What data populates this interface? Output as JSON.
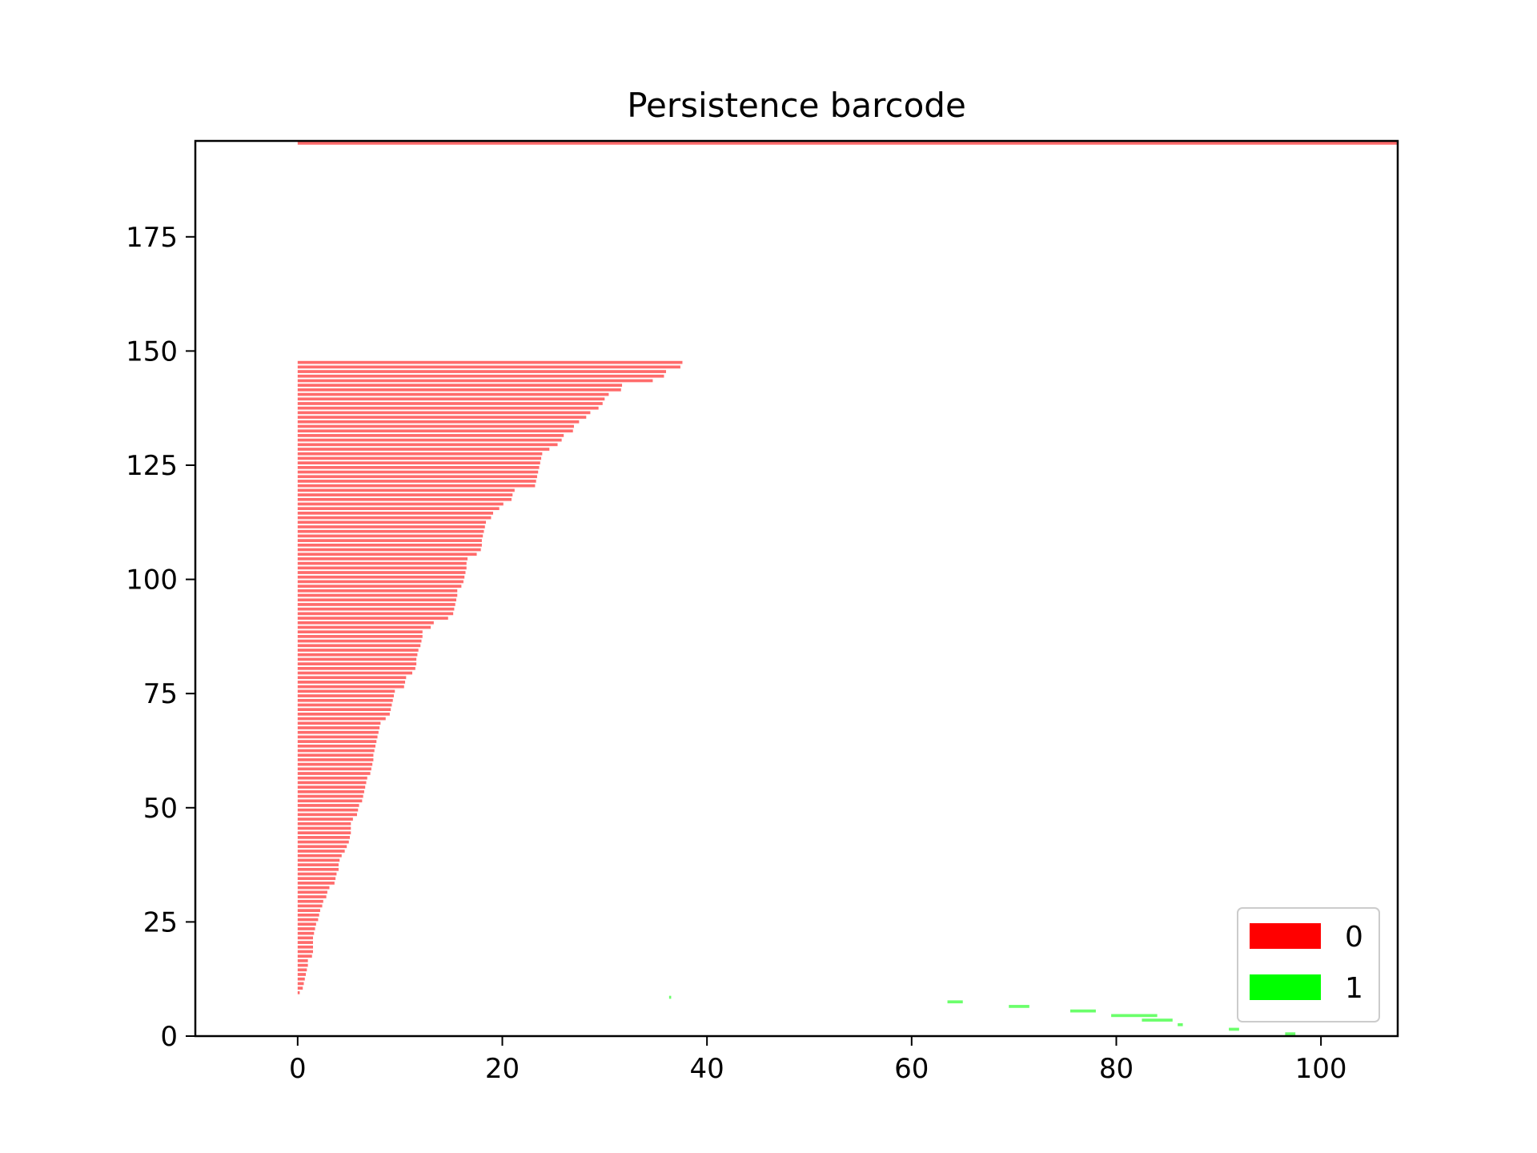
{
  "chart_data": {
    "type": "barcode",
    "title": "Persistence barcode",
    "xlabel": "",
    "ylabel": "",
    "xlim": [
      -10,
      107.5
    ],
    "ylim": [
      0,
      196
    ],
    "x_ticks": [
      0,
      20,
      40,
      60,
      80,
      100
    ],
    "y_ticks": [
      0,
      25,
      50,
      75,
      100,
      125,
      150,
      175
    ],
    "grid": false,
    "legend_position": "lower-right",
    "series": [
      {
        "name": "0",
        "legend_color": "#ff0000",
        "bar_color": "#ff6b6b",
        "births": 0,
        "bar_start_index": 9,
        "deaths": [
          0.2,
          0.5,
          0.6,
          0.7,
          0.8,
          0.9,
          1.0,
          1.0,
          1.4,
          1.5,
          1.5,
          1.5,
          1.5,
          1.6,
          1.7,
          1.8,
          2.0,
          2.1,
          2.2,
          2.4,
          2.5,
          2.8,
          2.9,
          3.1,
          3.6,
          3.7,
          3.8,
          4.0,
          4.0,
          4.1,
          4.3,
          4.6,
          4.8,
          5.0,
          5.1,
          5.2,
          5.2,
          5.2,
          5.4,
          5.8,
          5.9,
          6.0,
          6.3,
          6.4,
          6.5,
          6.6,
          6.7,
          6.8,
          7.1,
          7.2,
          7.3,
          7.4,
          7.4,
          7.5,
          7.6,
          7.7,
          7.8,
          7.9,
          8.0,
          8.1,
          8.6,
          9.0,
          9.1,
          9.2,
          9.3,
          9.4,
          9.5,
          10.4,
          10.5,
          10.6,
          11.2,
          11.5,
          11.6,
          11.6,
          11.7,
          11.8,
          12.0,
          12.1,
          12.2,
          12.2,
          13.0,
          13.3,
          14.7,
          15.2,
          15.3,
          15.4,
          15.5,
          15.6,
          15.6,
          16.0,
          16.2,
          16.3,
          16.4,
          16.5,
          16.5,
          16.6,
          17.5,
          17.9,
          18.0,
          18.0,
          18.1,
          18.2,
          18.3,
          18.4,
          18.9,
          19.1,
          19.7,
          20.1,
          20.9,
          21.0,
          21.2,
          23.2,
          23.3,
          23.4,
          23.5,
          23.6,
          23.7,
          23.8,
          23.9,
          24.6,
          25.4,
          25.8,
          26.0,
          26.9,
          27.0,
          27.5,
          28.2,
          28.6,
          29.4,
          29.8,
          30.0,
          30.4,
          31.6,
          31.7,
          34.7,
          35.8,
          36.0,
          37.4,
          37.6
        ],
        "infinite_bar_index": 195
      },
      {
        "name": "1",
        "legend_color": "#00ff00",
        "bar_color": "#6bff6b",
        "bars": [
          {
            "index": 0,
            "birth": 96.5,
            "death": 97.5
          },
          {
            "index": 1,
            "birth": 91.0,
            "death": 92.0
          },
          {
            "index": 2,
            "birth": 86.0,
            "death": 86.5
          },
          {
            "index": 3,
            "birth": 82.5,
            "death": 85.5
          },
          {
            "index": 4,
            "birth": 79.5,
            "death": 84.0
          },
          {
            "index": 5,
            "birth": 75.5,
            "death": 78.0
          },
          {
            "index": 6,
            "birth": 69.5,
            "death": 71.5
          },
          {
            "index": 7,
            "birth": 63.5,
            "death": 65.0
          },
          {
            "index": 8,
            "birth": 36.3,
            "death": 36.5
          }
        ]
      }
    ]
  }
}
